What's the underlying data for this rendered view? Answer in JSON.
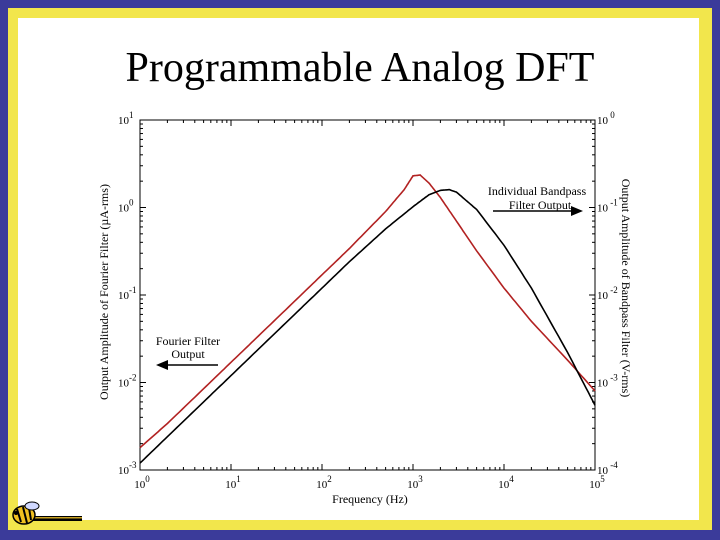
{
  "slide": {
    "title": "Programmable Analog DFT",
    "colors": {
      "border_outer": "#3b3b9a",
      "border_inner": "#f2e64c",
      "background": "#ffffff",
      "series_fourier": "#b22222",
      "series_bandpass": "#000000"
    }
  },
  "chart_data": {
    "type": "line",
    "title": "",
    "xlabel": "Frequency (Hz)",
    "ylabel_left": "Output Amplitude of Fourier Filter (µA-rms)",
    "ylabel_right": "Output Amplitude of Bandpass Filter (V-rms)",
    "xscale": "log",
    "yscale": "log",
    "xlim": [
      1,
      100000
    ],
    "ylim_left": [
      0.001,
      10
    ],
    "ylim_right": [
      0.0001,
      1
    ],
    "grid": false,
    "x_ticks": [
      {
        "base": "10",
        "exp": "0",
        "value": 1
      },
      {
        "base": "10",
        "exp": "1",
        "value": 10
      },
      {
        "base": "10",
        "exp": "2",
        "value": 100
      },
      {
        "base": "10",
        "exp": "3",
        "value": 1000
      },
      {
        "base": "10",
        "exp": "4",
        "value": 10000
      },
      {
        "base": "10",
        "exp": "5",
        "value": 100000
      }
    ],
    "y_ticks_left": [
      {
        "base": "10",
        "exp": "1",
        "value": 10
      },
      {
        "base": "10",
        "exp": "0",
        "value": 1
      },
      {
        "base": "10",
        "exp": "-1",
        "value": 0.1
      },
      {
        "base": "10",
        "exp": "-2",
        "value": 0.01
      },
      {
        "base": "10",
        "exp": "-3",
        "value": 0.001
      }
    ],
    "y_ticks_right": [
      {
        "base": "10",
        "exp": " 0",
        "value": 1
      },
      {
        "base": "10",
        "exp": " -1",
        "value": 0.1
      },
      {
        "base": "10",
        "exp": " -2",
        "value": 0.01
      },
      {
        "base": "10",
        "exp": " -3",
        "value": 0.001
      },
      {
        "base": "10",
        "exp": " -4",
        "value": 0.0001
      }
    ],
    "series": [
      {
        "key": "fourier_filter",
        "axis": "left",
        "color": "#b22222",
        "x": [
          1,
          2,
          5,
          10,
          20,
          50,
          100,
          200,
          500,
          800,
          1000,
          1200,
          1500,
          2000,
          3000,
          5000,
          10000,
          20000,
          50000,
          100000
        ],
        "y": [
          0.0018,
          0.0034,
          0.0085,
          0.017,
          0.034,
          0.085,
          0.17,
          0.34,
          0.9,
          1.6,
          2.3,
          2.35,
          1.9,
          1.3,
          0.7,
          0.32,
          0.12,
          0.05,
          0.018,
          0.008
        ]
      },
      {
        "key": "bandpass_filter",
        "axis": "right",
        "color": "#000000",
        "x": [
          1,
          2,
          5,
          10,
          20,
          50,
          100,
          200,
          500,
          1000,
          1500,
          2000,
          2500,
          3000,
          5000,
          10000,
          20000,
          50000,
          100000
        ],
        "y": [
          0.00012,
          0.00024,
          0.0006,
          0.0012,
          0.0024,
          0.006,
          0.012,
          0.024,
          0.057,
          0.102,
          0.14,
          0.157,
          0.16,
          0.15,
          0.095,
          0.037,
          0.012,
          0.0022,
          0.00055
        ]
      }
    ],
    "annotations": [
      {
        "key": "fourier",
        "lines": [
          "Fourier Filter",
          "Output"
        ]
      },
      {
        "key": "bandpass",
        "lines": [
          "Individual Bandpass",
          "Filter Output"
        ]
      }
    ]
  }
}
